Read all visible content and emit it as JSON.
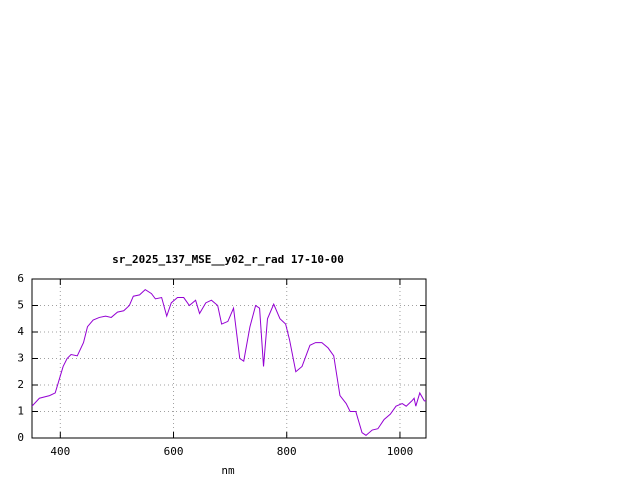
{
  "chart_data": {
    "type": "line",
    "title": "sr_2025_137_MSE__y02_r_rad 17-10-00",
    "x_label": "nm",
    "xlim": [
      350,
      1046
    ],
    "ylim": [
      0,
      6
    ],
    "xticks": [
      400,
      600,
      800,
      1000
    ],
    "yticks": [
      0,
      1,
      2,
      3,
      4,
      5,
      6
    ],
    "grid": true,
    "series": [
      {
        "color": "#9400d3",
        "x": [
          350,
          363,
          381,
          391,
          398,
          405,
          412,
          419,
          430,
          441,
          448,
          458,
          469,
          480,
          490,
          501,
          512,
          522,
          529,
          540,
          550,
          561,
          568,
          579,
          588,
          596,
          607,
          618,
          628,
          639,
          646,
          657,
          667,
          678,
          685,
          696,
          706,
          717,
          724,
          735,
          745,
          752,
          759,
          766,
          777,
          788,
          798,
          805,
          816,
          827,
          834,
          841,
          851,
          862,
          873,
          883,
          894,
          905,
          912,
          922,
          933,
          940,
          951,
          961,
          972,
          983,
          993,
          1004,
          1011,
          1021,
          1025,
          1028,
          1035,
          1043,
          1046
        ],
        "values": [
          1.2,
          1.5,
          1.6,
          1.7,
          2.2,
          2.7,
          3.0,
          3.15,
          3.1,
          3.6,
          4.2,
          4.45,
          4.55,
          4.6,
          4.55,
          4.75,
          4.8,
          5.0,
          5.35,
          5.4,
          5.6,
          5.45,
          5.25,
          5.3,
          4.6,
          5.1,
          5.3,
          5.3,
          5.0,
          5.2,
          4.7,
          5.1,
          5.2,
          5.0,
          4.3,
          4.4,
          4.9,
          3.0,
          2.9,
          4.2,
          5.0,
          4.9,
          2.7,
          4.5,
          5.05,
          4.5,
          4.3,
          3.7,
          2.5,
          2.7,
          3.1,
          3.5,
          3.6,
          3.6,
          3.4,
          3.1,
          1.6,
          1.3,
          1.0,
          1.0,
          0.2,
          0.1,
          0.3,
          0.35,
          0.7,
          0.9,
          1.2,
          1.3,
          1.2,
          1.4,
          1.5,
          1.2,
          1.7,
          1.4,
          1.4
        ]
      }
    ]
  }
}
